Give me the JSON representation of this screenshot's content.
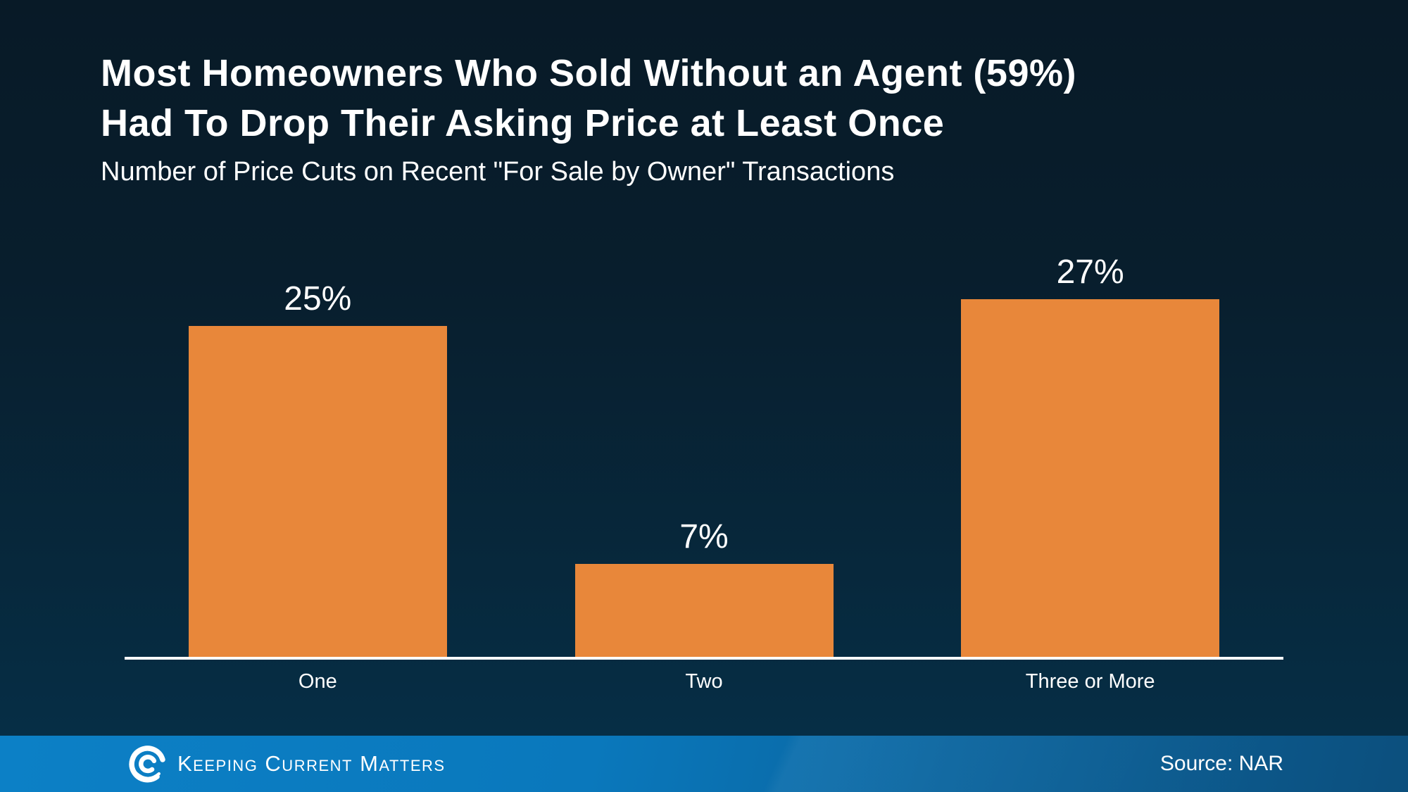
{
  "header": {
    "title_line1": "Most Homeowners Who Sold Without an Agent (59%)",
    "title_line2": "Had To Drop Their Asking Price at Least Once",
    "subtitle": "Number of Price Cuts on Recent \"For Sale by Owner\" Transactions"
  },
  "chart_data": {
    "type": "bar",
    "title": "Most Homeowners Who Sold Without an Agent (59%) Had To Drop Their Asking Price at Least Once",
    "subtitle": "Number of Price Cuts on Recent \"For Sale by Owner\" Transactions",
    "categories": [
      "One",
      "Two",
      "Three or More"
    ],
    "values": [
      25,
      7,
      27
    ],
    "value_labels": [
      "25%",
      "7%",
      "27%"
    ],
    "xlabel": "",
    "ylabel": "",
    "ylim": [
      0,
      30
    ],
    "grid": false,
    "legend": false,
    "bar_color": "#E8873A",
    "axis_color": "#FFFFFF",
    "text_color": "#FFFFFF"
  },
  "footer": {
    "brand": "Keeping Current Matters",
    "logo_icon": "kcm-spiral-logo",
    "source": "Source: NAR"
  },
  "colors": {
    "background_top": "#081A27",
    "background_bottom": "#053049",
    "bar": "#E8873A",
    "footer_left": "#0C80C6",
    "footer_right": "#0C4F7D",
    "text": "#FFFFFF"
  }
}
